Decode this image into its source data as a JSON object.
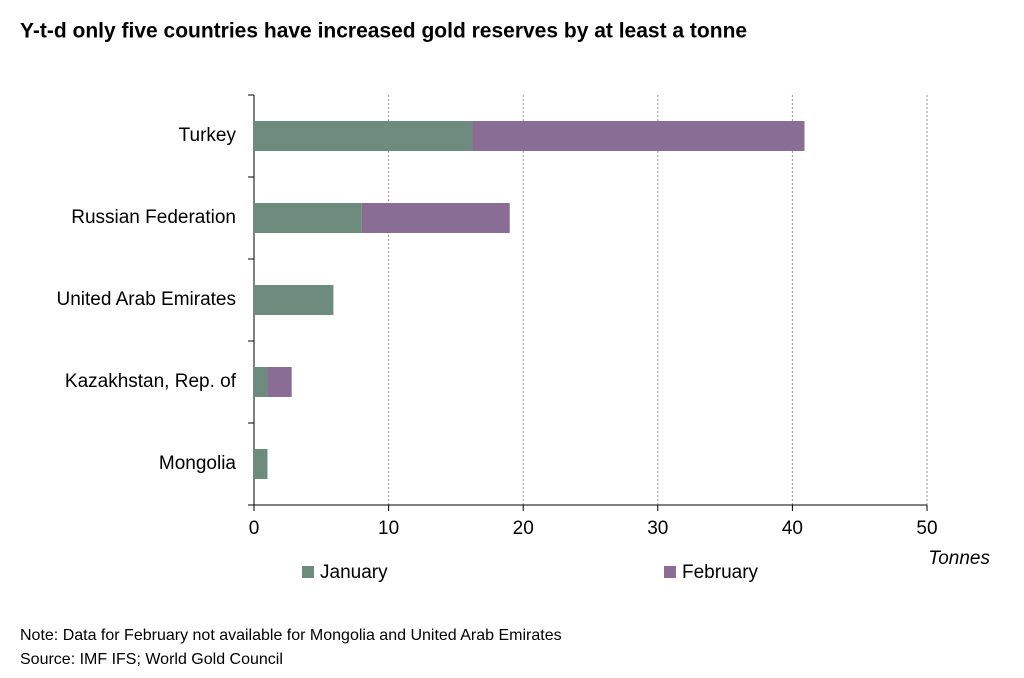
{
  "chart_data": {
    "type": "stacked-bar-horizontal",
    "title": "Y-t-d only five countries have increased gold reserves by at least a tonne",
    "categories": [
      "Turkey",
      "Russian Federation",
      "United Arab Emirates",
      "Kazakhstan, Rep. of",
      "Mongolia"
    ],
    "series": [
      {
        "name": "January",
        "color": "#6e8c7d",
        "values": [
          16.2,
          8.0,
          5.9,
          1.0,
          1.0
        ]
      },
      {
        "name": "February",
        "color": "#8a6d94",
        "values": [
          24.7,
          11.0,
          null,
          1.8,
          null
        ]
      }
    ],
    "xlim": [
      0,
      50
    ],
    "xticks": [
      0,
      10,
      20,
      30,
      40,
      50
    ],
    "grid": true,
    "x_axis_label": "Tonnes",
    "notes": [
      "Note: Data for February not available for Mongolia and United Arab Emirates",
      "Source: IMF IFS; World Gold Council"
    ]
  }
}
